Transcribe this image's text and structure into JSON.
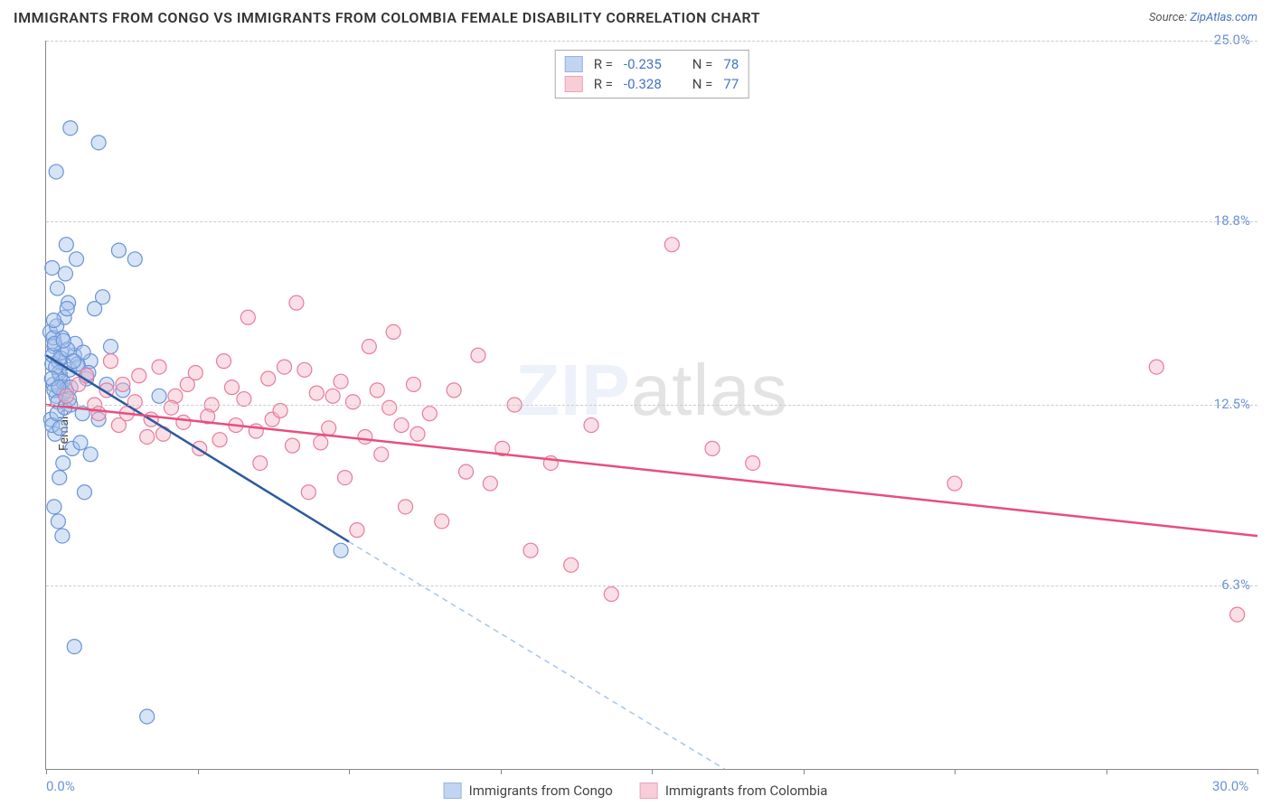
{
  "title": "IMMIGRANTS FROM CONGO VS IMMIGRANTS FROM COLOMBIA FEMALE DISABILITY CORRELATION CHART",
  "source_label": "Source:",
  "source_name": "ZipAtlas.com",
  "ylabel": "Female Disability",
  "watermark_a": "ZIP",
  "watermark_b": "atlas",
  "chart": {
    "type": "scatter",
    "xlim": [
      0,
      30
    ],
    "ylim": [
      0,
      25
    ],
    "x_ticks": [
      0,
      3.75,
      7.5,
      11.25,
      15,
      18.75,
      22.5,
      26.25,
      30
    ],
    "x_tick_labels": {
      "0": "0.0%",
      "30": "30.0%"
    },
    "y_grid": [
      6.3,
      12.5,
      18.8,
      25.0
    ],
    "y_labels": [
      "6.3%",
      "12.5%",
      "18.8%",
      "25.0%"
    ],
    "background_color": "#ffffff",
    "grid_color": "#cccccc",
    "axis_color": "#888888",
    "label_color": "#6b93d6"
  },
  "series": [
    {
      "name": "Immigrants from Congo",
      "color_fill": "#a7c4ec",
      "color_stroke": "#6b93d6",
      "fill_opacity": 0.45,
      "trend_color": "#2c5aa0",
      "trend_dash_color": "#a7c4ec",
      "R": "-0.235",
      "N": "78",
      "trend": {
        "x1": 0.0,
        "y1": 14.2,
        "x2": 7.5,
        "y2": 7.8
      },
      "trend_ext": {
        "x1": 7.5,
        "y1": 7.8,
        "x2": 16.8,
        "y2": 0.0
      },
      "points": [
        [
          0.15,
          13.9
        ],
        [
          0.2,
          14.5
        ],
        [
          0.18,
          13.2
        ],
        [
          0.25,
          12.8
        ],
        [
          0.3,
          14.0
        ],
        [
          0.1,
          15.0
        ],
        [
          0.35,
          13.5
        ],
        [
          0.4,
          14.8
        ],
        [
          0.12,
          12.0
        ],
        [
          0.22,
          11.5
        ],
        [
          0.5,
          13.0
        ],
        [
          0.6,
          12.5
        ],
        [
          0.45,
          15.5
        ],
        [
          0.55,
          16.0
        ],
        [
          0.28,
          16.5
        ],
        [
          0.7,
          14.2
        ],
        [
          0.8,
          13.8
        ],
        [
          0.9,
          12.2
        ],
        [
          1.0,
          13.4
        ],
        [
          0.65,
          11.0
        ],
        [
          0.42,
          10.5
        ],
        [
          0.33,
          10.0
        ],
        [
          0.48,
          17.0
        ],
        [
          0.75,
          17.5
        ],
        [
          1.2,
          15.8
        ],
        [
          1.4,
          16.2
        ],
        [
          0.2,
          9.0
        ],
        [
          0.3,
          8.5
        ],
        [
          0.95,
          9.5
        ],
        [
          1.1,
          10.8
        ],
        [
          1.3,
          12.0
        ],
        [
          1.5,
          13.2
        ],
        [
          0.15,
          17.2
        ],
        [
          0.5,
          18.0
        ],
        [
          1.8,
          17.8
        ],
        [
          2.2,
          17.5
        ],
        [
          1.6,
          14.5
        ],
        [
          1.9,
          13.0
        ],
        [
          0.6,
          22.0
        ],
        [
          1.3,
          21.5
        ],
        [
          0.25,
          20.5
        ],
        [
          0.7,
          4.2
        ],
        [
          0.4,
          8.0
        ],
        [
          2.5,
          1.8
        ],
        [
          2.8,
          12.8
        ],
        [
          0.85,
          11.2
        ],
        [
          1.1,
          14.0
        ],
        [
          0.18,
          14.8
        ],
        [
          0.32,
          13.6
        ],
        [
          0.44,
          12.9
        ],
        [
          0.58,
          13.7
        ],
        [
          0.72,
          14.6
        ],
        [
          0.15,
          11.8
        ],
        [
          0.26,
          15.2
        ],
        [
          0.38,
          14.3
        ],
        [
          0.52,
          15.8
        ],
        [
          7.3,
          7.5
        ],
        [
          0.2,
          13.0
        ],
        [
          0.16,
          14.2
        ],
        [
          0.24,
          13.8
        ],
        [
          0.36,
          14.1
        ],
        [
          0.29,
          12.6
        ],
        [
          0.41,
          13.3
        ],
        [
          0.53,
          14.4
        ],
        [
          0.19,
          15.4
        ],
        [
          0.27,
          12.2
        ],
        [
          0.34,
          11.7
        ],
        [
          0.46,
          12.4
        ],
        [
          0.61,
          13.1
        ],
        [
          0.78,
          13.9
        ],
        [
          0.92,
          14.3
        ],
        [
          1.05,
          13.6
        ],
        [
          0.14,
          13.4
        ],
        [
          0.21,
          14.6
        ],
        [
          0.31,
          13.1
        ],
        [
          0.43,
          14.7
        ],
        [
          0.57,
          12.7
        ],
        [
          0.68,
          14.0
        ]
      ]
    },
    {
      "name": "Immigrants from Colombia",
      "color_fill": "#f4b8c8",
      "color_stroke": "#e87ba0",
      "fill_opacity": 0.45,
      "trend_color": "#e84d7e",
      "R": "-0.328",
      "N": "77",
      "trend": {
        "x1": 0.0,
        "y1": 12.5,
        "x2": 30.0,
        "y2": 8.0
      },
      "points": [
        [
          0.5,
          12.8
        ],
        [
          0.8,
          13.2
        ],
        [
          1.2,
          12.5
        ],
        [
          1.5,
          13.0
        ],
        [
          1.8,
          11.8
        ],
        [
          2.0,
          12.2
        ],
        [
          2.3,
          13.5
        ],
        [
          2.6,
          12.0
        ],
        [
          2.9,
          11.5
        ],
        [
          3.2,
          12.8
        ],
        [
          3.5,
          13.2
        ],
        [
          3.8,
          11.0
        ],
        [
          4.1,
          12.5
        ],
        [
          4.4,
          14.0
        ],
        [
          4.7,
          11.8
        ],
        [
          5.0,
          15.5
        ],
        [
          5.3,
          10.5
        ],
        [
          5.6,
          12.0
        ],
        [
          5.9,
          13.8
        ],
        [
          6.2,
          16.0
        ],
        [
          6.5,
          9.5
        ],
        [
          6.8,
          11.2
        ],
        [
          7.1,
          12.8
        ],
        [
          7.4,
          10.0
        ],
        [
          7.7,
          8.2
        ],
        [
          8.0,
          14.5
        ],
        [
          8.3,
          10.8
        ],
        [
          8.6,
          15.0
        ],
        [
          8.9,
          9.0
        ],
        [
          9.2,
          11.5
        ],
        [
          9.5,
          12.2
        ],
        [
          9.8,
          8.5
        ],
        [
          10.1,
          13.0
        ],
        [
          10.4,
          10.2
        ],
        [
          10.7,
          14.2
        ],
        [
          11.0,
          9.8
        ],
        [
          11.3,
          11.0
        ],
        [
          11.6,
          12.5
        ],
        [
          12.0,
          7.5
        ],
        [
          12.5,
          10.5
        ],
        [
          13.0,
          7.0
        ],
        [
          13.5,
          11.8
        ],
        [
          14.0,
          6.0
        ],
        [
          15.5,
          18.0
        ],
        [
          16.5,
          11.0
        ],
        [
          17.5,
          10.5
        ],
        [
          22.5,
          9.8
        ],
        [
          27.5,
          13.8
        ],
        [
          29.5,
          5.3
        ],
        [
          1.0,
          13.5
        ],
        [
          1.3,
          12.2
        ],
        [
          1.6,
          14.0
        ],
        [
          1.9,
          13.2
        ],
        [
          2.2,
          12.6
        ],
        [
          2.5,
          11.4
        ],
        [
          2.8,
          13.8
        ],
        [
          3.1,
          12.4
        ],
        [
          3.4,
          11.9
        ],
        [
          3.7,
          13.6
        ],
        [
          4.0,
          12.1
        ],
        [
          4.3,
          11.3
        ],
        [
          4.6,
          13.1
        ],
        [
          4.9,
          12.7
        ],
        [
          5.2,
          11.6
        ],
        [
          5.5,
          13.4
        ],
        [
          5.8,
          12.3
        ],
        [
          6.1,
          11.1
        ],
        [
          6.4,
          13.7
        ],
        [
          6.7,
          12.9
        ],
        [
          7.0,
          11.7
        ],
        [
          7.3,
          13.3
        ],
        [
          7.6,
          12.6
        ],
        [
          7.9,
          11.4
        ],
        [
          8.2,
          13.0
        ],
        [
          8.5,
          12.4
        ],
        [
          8.8,
          11.8
        ],
        [
          9.1,
          13.2
        ]
      ]
    }
  ],
  "legend": {
    "r_label": "R =",
    "n_label": "N ="
  }
}
